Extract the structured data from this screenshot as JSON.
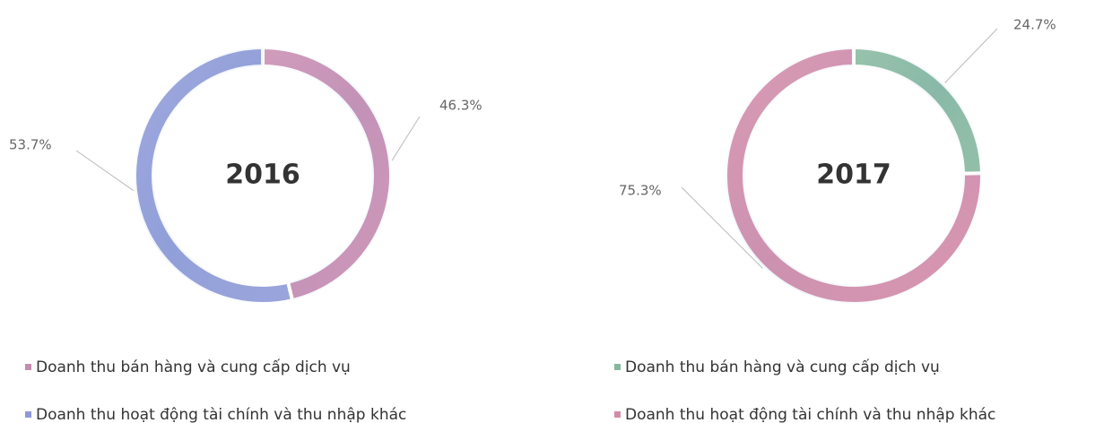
{
  "chart_data": [
    {
      "type": "donut",
      "title": "2016",
      "categories": [
        "Doanh thu bán hàng và cung cấp dịch vụ",
        "Doanh thu hoạt động tài chính và thu nhập khác"
      ],
      "values": [
        46.3,
        53.7
      ],
      "value_labels": [
        "46.3%",
        "53.7%"
      ],
      "colors": [
        "#c98bb0",
        "#8f9ad8"
      ]
    },
    {
      "type": "donut",
      "title": "2017",
      "categories": [
        "Doanh thu bán hàng và cung cấp dịch vụ",
        "Doanh thu hoạt động tài chính và thu nhập khác"
      ],
      "values": [
        24.7,
        75.3
      ],
      "value_labels": [
        "24.7%",
        "75.3%"
      ],
      "colors": [
        "#86b89e",
        "#d48aa8"
      ]
    }
  ]
}
